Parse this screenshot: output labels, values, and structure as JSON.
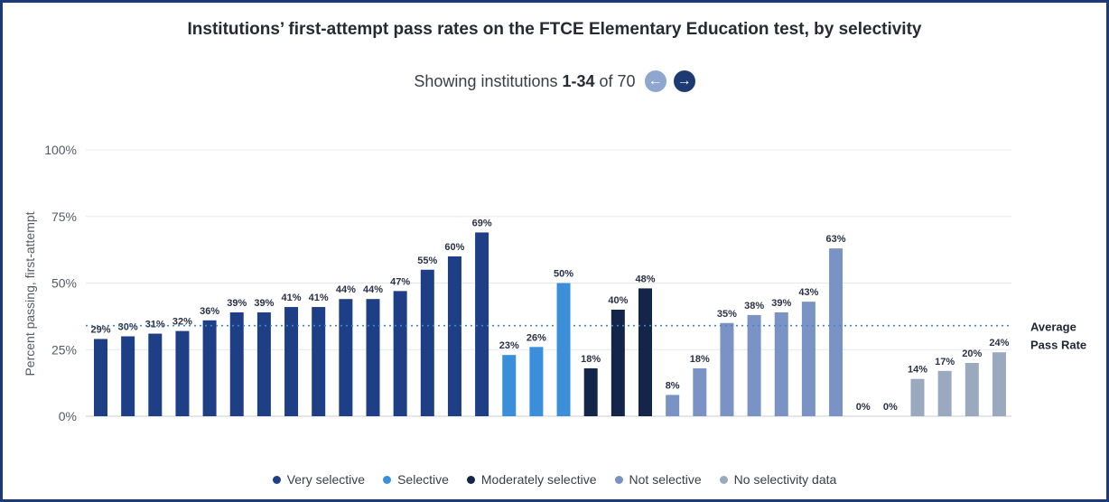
{
  "page": {
    "title": "Institutions’ first-attempt pass rates on the FTCE Elementary Education test, by selectivity",
    "pager": {
      "prefix": "Showing institutions",
      "range": "1-34",
      "suffix": "of 70",
      "prev_icon": "arrow-left-icon",
      "next_icon": "arrow-right-icon"
    }
  },
  "chart_data": {
    "type": "bar",
    "title": "Institutions’ first-attempt pass rates on the FTCE Elementary Education test, by selectivity",
    "ylabel": "Percent passing, first-attempt",
    "xlabel": "",
    "ylim": [
      0,
      100
    ],
    "yticks": [
      "0%",
      "25%",
      "50%",
      "75%",
      "100%"
    ],
    "grid": true,
    "legend_position": "bottom",
    "average_line": {
      "label_line1": "Average",
      "label_line2": "Pass Rate",
      "value": 34,
      "color": "#3c8ad6"
    },
    "series": [
      {
        "name": "Very selective",
        "color": "#1e3f86",
        "values": [
          29,
          30,
          31,
          32,
          36,
          39,
          39,
          41,
          41,
          44,
          44,
          47,
          55,
          60,
          69
        ]
      },
      {
        "name": "Selective",
        "color": "#3b8fda",
        "values": [
          23,
          26,
          50
        ]
      },
      {
        "name": "Moderately selective",
        "color": "#14254a",
        "values": [
          18,
          40,
          48
        ]
      },
      {
        "name": "Not selective",
        "color": "#7a93c4",
        "values": [
          8,
          18,
          35,
          38,
          39,
          43,
          63
        ]
      },
      {
        "name": "No selectivity data",
        "color": "#9ba9bf",
        "values": [
          0,
          0,
          14,
          17,
          20,
          24
        ]
      }
    ],
    "data_labels": [
      "29%",
      "30%",
      "31%",
      "32%",
      "36%",
      "39%",
      "39%",
      "41%",
      "41%",
      "44%",
      "44%",
      "47%",
      "55%",
      "60%",
      "69%",
      "23%",
      "26%",
      "50%",
      "18%",
      "40%",
      "48%",
      "8%",
      "18%",
      "35%",
      "38%",
      "39%",
      "43%",
      "63%",
      "0%",
      "0%",
      "14%",
      "17%",
      "20%",
      "24%"
    ]
  }
}
